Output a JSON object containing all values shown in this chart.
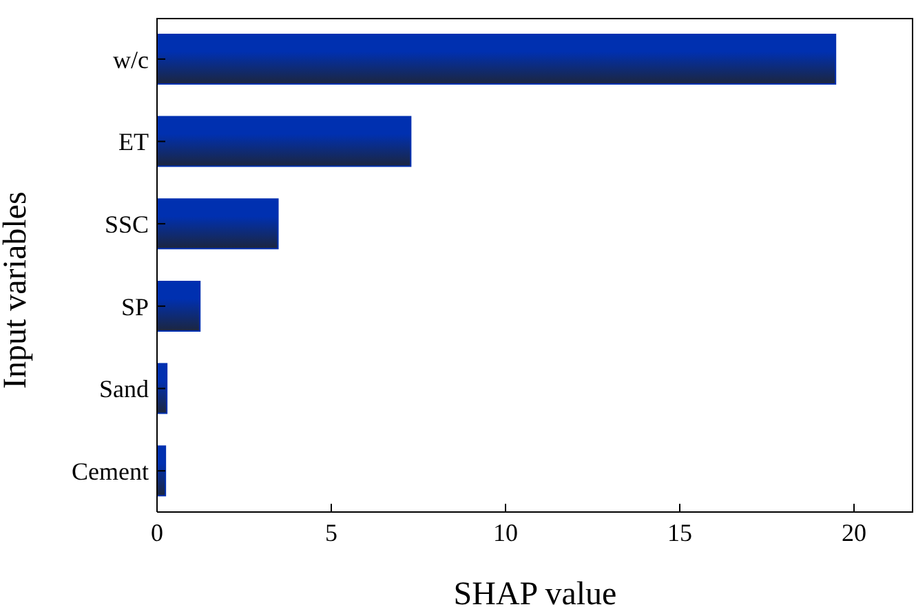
{
  "chart_data": {
    "type": "bar",
    "orientation": "horizontal",
    "xlabel": "SHAP value",
    "ylabel": "Input variables",
    "categories": [
      "w/c",
      "ET",
      "SSC",
      "SP",
      "Sand",
      "Cement"
    ],
    "values": [
      19.47,
      7.28,
      3.47,
      1.23,
      0.28,
      0.24
    ],
    "color": "#0030b0",
    "xlim": [
      0,
      21.7
    ],
    "xticks": [
      0,
      5,
      10,
      15,
      20
    ],
    "grid": false,
    "legend": false
  }
}
